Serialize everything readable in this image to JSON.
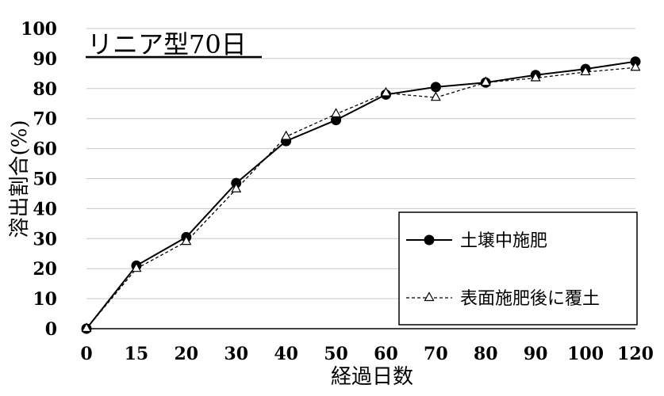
{
  "chart_data": {
    "type": "line",
    "title": "リニア型70日",
    "xlabel": "経過日数",
    "ylabel": "溶出割合(%)",
    "categories": [
      "0",
      "15",
      "20",
      "30",
      "40",
      "50",
      "60",
      "70",
      "80",
      "90",
      "100",
      "120"
    ],
    "ylim": [
      0,
      100
    ],
    "yticks": [
      "0",
      "10",
      "20",
      "30",
      "40",
      "50",
      "60",
      "70",
      "80",
      "90",
      "100"
    ],
    "grid": "horizontal",
    "legend_position": "bottom-right",
    "series": [
      {
        "name": "土壌中施肥",
        "marker": "circle",
        "line_style": "solid",
        "color": "#000000",
        "values": [
          0,
          21,
          30.5,
          48.5,
          62.5,
          69.5,
          78,
          80.5,
          82,
          84.5,
          86.5,
          89
        ]
      },
      {
        "name": "表面施肥後に覆土",
        "marker": "triangle",
        "line_style": "dashed",
        "color": "#000000",
        "values": [
          0,
          20,
          29,
          46.5,
          64,
          71.5,
          78.5,
          77,
          82,
          83.5,
          85.5,
          87
        ]
      }
    ]
  }
}
